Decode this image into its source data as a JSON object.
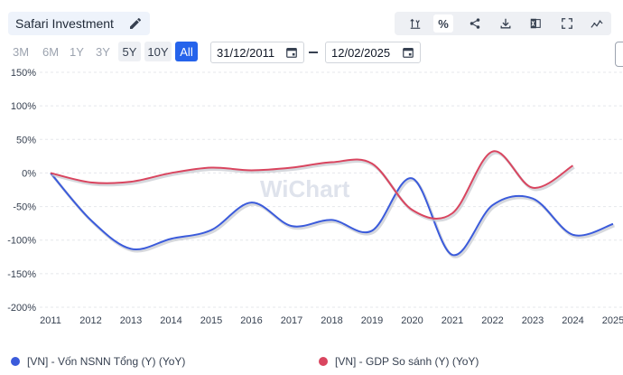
{
  "header": {
    "title": "Safari Investment"
  },
  "toolbar": {
    "percent_symbol": "%",
    "buttons": [
      "sort-axis",
      "percent",
      "share",
      "download",
      "excel",
      "fullscreen",
      "chart-style"
    ]
  },
  "ranges": [
    "3M",
    "6M",
    "1Y",
    "3Y",
    "5Y",
    "10Y",
    "All"
  ],
  "dates": {
    "from": "31/12/2011",
    "to": "12/02/2025"
  },
  "watermark": "WiChart",
  "colors": {
    "series1": "#3b5bdb",
    "series2": "#d9455f",
    "accent": "#2563eb"
  },
  "chart_data": {
    "type": "line",
    "x": [
      2011,
      2012,
      2013,
      2014,
      2015,
      2016,
      2017,
      2018,
      2019,
      2020,
      2021,
      2022,
      2023,
      2024,
      2025
    ],
    "xlim": [
      2011,
      2025
    ],
    "yticks": [
      "150%",
      "100%",
      "50%",
      "0%",
      "-50%",
      "-100%",
      "-150%",
      "-200%"
    ],
    "ylim": [
      -200,
      150
    ],
    "series": [
      {
        "name": "[VN] - Vốn NSNN Tổng (Y) (YoY)",
        "color": "#3b5bdb",
        "points": [
          [
            2011,
            0
          ],
          [
            2012,
            -70
          ],
          [
            2013,
            -113
          ],
          [
            2014,
            -98
          ],
          [
            2015,
            -85
          ],
          [
            2016,
            -44
          ],
          [
            2017,
            -79
          ],
          [
            2018,
            -70
          ],
          [
            2019,
            -86
          ],
          [
            2020,
            -8
          ],
          [
            2021,
            -122
          ],
          [
            2022,
            -48
          ],
          [
            2023,
            -38
          ],
          [
            2024,
            -92
          ],
          [
            2025,
            -76
          ]
        ]
      },
      {
        "name": "[VN] - GDP So sánh (Y) (YoY)",
        "color": "#d9455f",
        "points": [
          [
            2011,
            0
          ],
          [
            2012,
            -14
          ],
          [
            2013,
            -13
          ],
          [
            2014,
            0
          ],
          [
            2015,
            8
          ],
          [
            2016,
            4
          ],
          [
            2017,
            8
          ],
          [
            2018,
            16
          ],
          [
            2019,
            14
          ],
          [
            2020,
            -55
          ],
          [
            2021,
            -60
          ],
          [
            2022,
            32
          ],
          [
            2023,
            -22
          ],
          [
            2024,
            11
          ]
        ]
      }
    ]
  },
  "legend": {
    "series1": "[VN] - Vốn NSNN Tổng (Y) (YoY)",
    "series2": "[VN] - GDP So sánh (Y) (YoY)"
  }
}
